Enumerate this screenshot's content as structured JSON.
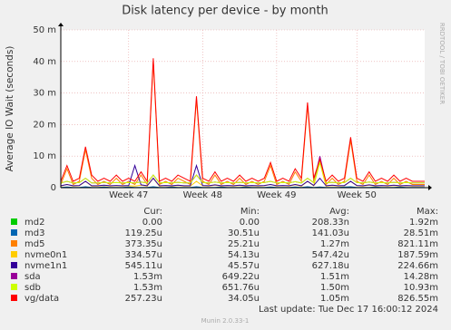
{
  "chart_data": {
    "type": "line",
    "title": "Disk latency per device - by month",
    "y_label": "Average IO Wait (seconds)",
    "side_note": "RRDTOOL / TOBI OETIKER",
    "last_update": "Last update:  Tue Dec 17 16:00:12 2024",
    "footer": "Munin 2.0.33-1",
    "grid": true,
    "ylim": [
      0,
      0.05
    ],
    "yticks": [
      0,
      {
        "value": 0.01,
        "label": "10 m"
      },
      {
        "value": 0.02,
        "label": "20 m"
      },
      {
        "value": 0.03,
        "label": "30 m"
      },
      {
        "value": 0.04,
        "label": "40 m"
      },
      {
        "value": 0.05,
        "label": "50 m"
      }
    ],
    "categories": [
      null,
      null,
      null,
      null,
      null,
      null,
      null,
      null,
      null,
      null,
      null,
      "Week 47",
      null,
      null,
      null,
      null,
      null,
      null,
      null,
      null,
      null,
      null,
      null,
      "Week 48",
      null,
      null,
      null,
      null,
      null,
      null,
      null,
      null,
      null,
      null,
      null,
      "Week 49",
      null,
      null,
      null,
      null,
      null,
      null,
      null,
      null,
      null,
      null,
      null,
      null,
      "Week 50",
      null,
      null,
      null,
      null,
      null,
      null,
      null,
      null,
      null,
      null,
      null
    ],
    "stat_headers": [
      "Cur:",
      "Min:",
      "Avg:",
      "Max:"
    ],
    "series": [
      {
        "name": "md2",
        "color": "#00cc00",
        "stats": [
          "0.00",
          "0.00",
          "208.33n",
          "1.92m"
        ],
        "values": [
          0,
          0,
          0,
          0,
          0,
          0,
          0,
          0,
          0,
          0,
          0,
          0,
          0,
          0,
          0,
          0,
          0,
          0,
          0,
          0,
          0,
          0,
          0,
          0,
          0,
          0,
          0,
          0,
          0,
          0,
          0,
          0,
          0,
          0,
          0,
          0,
          0,
          0,
          0,
          0,
          0,
          0,
          0,
          0,
          0,
          0,
          0,
          0,
          0,
          0,
          0,
          0,
          0,
          0,
          0,
          0,
          0,
          0,
          0,
          0
        ]
      },
      {
        "name": "md3",
        "color": "#0066b3",
        "stats": [
          "119.25u",
          "30.51u",
          "141.03u",
          "28.51m"
        ],
        "values": [
          0.0001,
          0.0002,
          0.0001,
          0.0001,
          0.0003,
          0.0001,
          0.0001,
          0.0002,
          0.0001,
          0.0001,
          0.0001,
          0.0002,
          0.0001,
          0.0001,
          0.0001,
          0.0003,
          0.0001,
          0.0001,
          0.0002,
          0.0001,
          0.0001,
          0.0001,
          0.0003,
          0.0001,
          0.0001,
          0.0001,
          0.0002,
          0.0001,
          0.0001,
          0.0001,
          0.0002,
          0.0001,
          0.0001,
          0.0001,
          0.0002,
          0.0001,
          0.0001,
          0.0001,
          0.0002,
          0.0001,
          0.0003,
          0.0001,
          0.0002,
          0.0001,
          0.0001,
          0.0001,
          0.0002,
          0.0003,
          0.0001,
          0.0001,
          0.0001,
          0.0002,
          0.0001,
          0.0001,
          0.0001,
          0.0002,
          0.0001,
          0.0001,
          0.0001,
          0.0001
        ]
      },
      {
        "name": "md5",
        "color": "#ff8000",
        "stats": [
          "373.35u",
          "25.21u",
          "1.27m",
          "821.11m"
        ],
        "values": [
          0.001,
          0.006,
          0.001,
          0.002,
          0.012,
          0.003,
          0.001,
          0.002,
          0.001,
          0.003,
          0.001,
          0.002,
          0.001,
          0.004,
          0.001,
          0.04,
          0.001,
          0.002,
          0.001,
          0.003,
          0.002,
          0.001,
          0.028,
          0.002,
          0.001,
          0.004,
          0.001,
          0.002,
          0.001,
          0.003,
          0.001,
          0.002,
          0.001,
          0.002,
          0.007,
          0.001,
          0.002,
          0.001,
          0.005,
          0.002,
          0.026,
          0.002,
          0.008,
          0.001,
          0.003,
          0.001,
          0.002,
          0.015,
          0.002,
          0.001,
          0.004,
          0.001,
          0.002,
          0.001,
          0.003,
          0.001,
          0.002,
          0.001,
          0.001,
          0.001
        ]
      },
      {
        "name": "nvme0n1",
        "color": "#ffcc00",
        "stats": [
          "334.57u",
          "54.13u",
          "547.42u",
          "187.59m"
        ],
        "values": [
          0.0005,
          0.001,
          0.0005,
          0.0006,
          0.002,
          0.0005,
          0.0005,
          0.0007,
          0.0005,
          0.0006,
          0.0005,
          0.0006,
          0.0005,
          0.0008,
          0.0005,
          0.003,
          0.0005,
          0.0006,
          0.0005,
          0.0007,
          0.0005,
          0.0005,
          0.002,
          0.0006,
          0.0005,
          0.0008,
          0.0005,
          0.0006,
          0.0005,
          0.0007,
          0.0005,
          0.0006,
          0.0005,
          0.0006,
          0.001,
          0.0005,
          0.0006,
          0.0005,
          0.0009,
          0.0005,
          0.002,
          0.0006,
          0.008,
          0.0005,
          0.0007,
          0.0005,
          0.0006,
          0.002,
          0.0006,
          0.0005,
          0.0008,
          0.0005,
          0.0006,
          0.0005,
          0.0007,
          0.0005,
          0.0006,
          0.0005,
          0.0005,
          0.0005
        ]
      },
      {
        "name": "nvme1n1",
        "color": "#330099",
        "stats": [
          "545.11u",
          "45.57u",
          "627.18u",
          "224.66m"
        ],
        "values": [
          0.0006,
          0.001,
          0.0006,
          0.0007,
          0.002,
          0.0006,
          0.0006,
          0.0008,
          0.0006,
          0.0007,
          0.0006,
          0.0007,
          0.007,
          0.0009,
          0.0006,
          0.003,
          0.0006,
          0.0007,
          0.0006,
          0.0008,
          0.0006,
          0.0006,
          0.007,
          0.0007,
          0.0006,
          0.0009,
          0.0006,
          0.0007,
          0.0006,
          0.0008,
          0.0006,
          0.0007,
          0.0006,
          0.0007,
          0.001,
          0.0006,
          0.0007,
          0.0006,
          0.001,
          0.0006,
          0.002,
          0.0007,
          0.003,
          0.0006,
          0.0008,
          0.0006,
          0.0007,
          0.002,
          0.0007,
          0.0006,
          0.0009,
          0.0006,
          0.0007,
          0.0006,
          0.0008,
          0.0006,
          0.0007,
          0.0006,
          0.0006,
          0.0006
        ]
      },
      {
        "name": "sda",
        "color": "#990099",
        "stats": [
          "1.53m",
          "649.22u",
          "1.51m",
          "14.28m"
        ],
        "values": [
          0.0015,
          0.002,
          0.0015,
          0.0016,
          0.003,
          0.0015,
          0.0015,
          0.0017,
          0.0015,
          0.0016,
          0.0015,
          0.0016,
          0.0015,
          0.0018,
          0.0015,
          0.004,
          0.0015,
          0.0016,
          0.0015,
          0.0017,
          0.0015,
          0.0015,
          0.004,
          0.0016,
          0.0015,
          0.0018,
          0.0015,
          0.0016,
          0.0015,
          0.0017,
          0.0015,
          0.0016,
          0.0015,
          0.0016,
          0.002,
          0.0015,
          0.0016,
          0.0015,
          0.0019,
          0.0015,
          0.003,
          0.0016,
          0.01,
          0.0015,
          0.0017,
          0.0015,
          0.0016,
          0.003,
          0.0016,
          0.0015,
          0.0018,
          0.0015,
          0.0016,
          0.0015,
          0.0017,
          0.0015,
          0.0016,
          0.0015,
          0.0015,
          0.0015
        ]
      },
      {
        "name": "sdb",
        "color": "#ccff00",
        "stats": [
          "1.53m",
          "651.76u",
          "1.50m",
          "10.93m"
        ],
        "values": [
          0.0015,
          0.002,
          0.0015,
          0.0016,
          0.003,
          0.0015,
          0.0015,
          0.0017,
          0.0015,
          0.0016,
          0.0015,
          0.0016,
          0.0015,
          0.0018,
          0.0015,
          0.004,
          0.0015,
          0.0016,
          0.0015,
          0.0017,
          0.0015,
          0.0015,
          0.004,
          0.0016,
          0.0015,
          0.0018,
          0.0015,
          0.0016,
          0.0015,
          0.0017,
          0.0015,
          0.0016,
          0.0015,
          0.0016,
          0.002,
          0.0015,
          0.0016,
          0.0015,
          0.0019,
          0.0015,
          0.003,
          0.0016,
          0.008,
          0.0015,
          0.0017,
          0.0015,
          0.0016,
          0.003,
          0.0016,
          0.0015,
          0.0018,
          0.0015,
          0.0016,
          0.0015,
          0.0017,
          0.0015,
          0.0016,
          0.0015,
          0.0015,
          0.0015
        ]
      },
      {
        "name": "vg/data",
        "color": "#ff0000",
        "stats": [
          "257.23u",
          "34.05u",
          "1.05m",
          "826.55m"
        ],
        "values": [
          0.002,
          0.007,
          0.002,
          0.003,
          0.013,
          0.004,
          0.002,
          0.003,
          0.002,
          0.004,
          0.002,
          0.003,
          0.002,
          0.005,
          0.002,
          0.041,
          0.002,
          0.003,
          0.002,
          0.004,
          0.003,
          0.002,
          0.029,
          0.003,
          0.002,
          0.005,
          0.002,
          0.003,
          0.002,
          0.004,
          0.002,
          0.003,
          0.002,
          0.003,
          0.008,
          0.002,
          0.003,
          0.002,
          0.006,
          0.003,
          0.027,
          0.003,
          0.009,
          0.002,
          0.004,
          0.002,
          0.003,
          0.016,
          0.003,
          0.002,
          0.005,
          0.002,
          0.003,
          0.002,
          0.004,
          0.002,
          0.003,
          0.002,
          0.002,
          0.002
        ]
      }
    ]
  }
}
